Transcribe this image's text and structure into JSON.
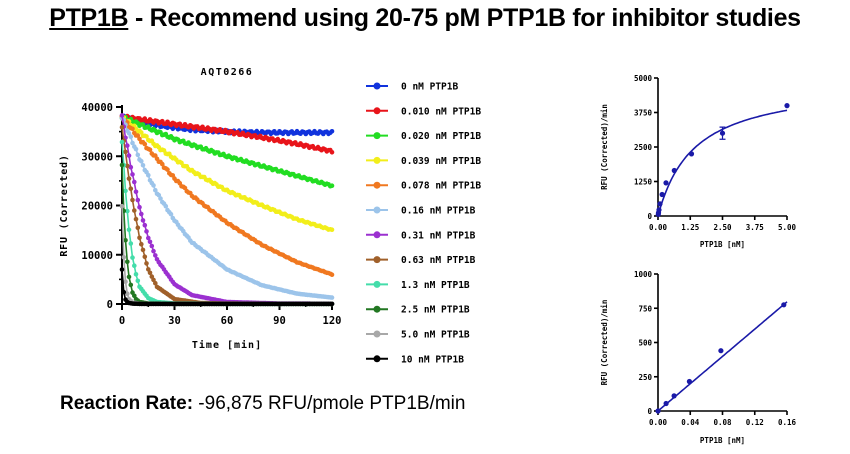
{
  "headline": {
    "prefix": "PTP1B",
    "rest": " - Recommend using 20-75 pM PTP1B for inhibitor studies"
  },
  "rate": {
    "label": "Reaction Rate:",
    "value": " -96,875 RFU/pmole PTP1B/min"
  },
  "chart_data": [
    {
      "type": "line",
      "title": "AQT0266",
      "xlabel": "Time [min]",
      "ylabel": "RFU (Corrected)",
      "xlim": [
        0,
        120
      ],
      "ylim": [
        0,
        40000
      ],
      "xticks": [
        "0",
        "30",
        "60",
        "90",
        "120"
      ],
      "yticks": [
        "0",
        "10000",
        "20000",
        "30000",
        "40000"
      ],
      "legend_placement": "right",
      "series": [
        {
          "name": "0 nM PTP1B",
          "color": "#1133dd",
          "x": [
            0,
            10,
            20,
            30,
            40,
            60,
            80,
            100,
            120
          ],
          "y": [
            38000,
            37000,
            36300,
            35800,
            35400,
            35000,
            34800,
            34800,
            34800
          ]
        },
        {
          "name": "0.010 nM PTP1B",
          "color": "#e8141a",
          "x": [
            0,
            10,
            20,
            30,
            40,
            60,
            80,
            100,
            120
          ],
          "y": [
            38000,
            37500,
            37000,
            36500,
            36000,
            35000,
            33800,
            32500,
            31000
          ]
        },
        {
          "name": "0.020 nM PTP1B",
          "color": "#22dd22",
          "x": [
            0,
            10,
            20,
            30,
            40,
            60,
            80,
            100,
            120
          ],
          "y": [
            38000,
            36500,
            35000,
            33500,
            32300,
            30000,
            28000,
            26000,
            24000
          ]
        },
        {
          "name": "0.039 nM PTP1B",
          "color": "#f2ee1a",
          "x": [
            0,
            10,
            20,
            30,
            40,
            60,
            80,
            100,
            120
          ],
          "y": [
            38000,
            35000,
            32000,
            29500,
            27000,
            23000,
            20000,
            17200,
            15000
          ]
        },
        {
          "name": "0.078 nM PTP1B",
          "color": "#f07820",
          "x": [
            0,
            10,
            20,
            30,
            40,
            60,
            80,
            100,
            120
          ],
          "y": [
            38000,
            33500,
            29500,
            25500,
            22000,
            16500,
            12000,
            8500,
            6000
          ]
        },
        {
          "name": "0.16 nM PTP1B",
          "color": "#9cc4ea",
          "x": [
            0,
            10,
            20,
            30,
            40,
            60,
            80,
            100,
            120
          ],
          "y": [
            38000,
            29500,
            22500,
            17000,
            12500,
            7000,
            3800,
            2100,
            1300
          ]
        },
        {
          "name": "0.31 nM PTP1B",
          "color": "#9b30d0",
          "x": [
            0,
            5,
            10,
            15,
            20,
            30,
            40,
            60,
            90,
            120
          ],
          "y": [
            38000,
            28000,
            19500,
            13500,
            9000,
            4000,
            1800,
            400,
            100,
            50
          ]
        },
        {
          "name": "0.63 nM PTP1B",
          "color": "#a0602a",
          "x": [
            0,
            3,
            6,
            10,
            15,
            20,
            30,
            45,
            60,
            90,
            120
          ],
          "y": [
            36000,
            28000,
            21000,
            13500,
            7000,
            3500,
            1000,
            200,
            80,
            40,
            30
          ]
        },
        {
          "name": "1.3 nM PTP1B",
          "color": "#44ddaa",
          "x": [
            0,
            2,
            4,
            6,
            8,
            10,
            15,
            20,
            30,
            60,
            120
          ],
          "y": [
            33000,
            23000,
            15000,
            9500,
            6000,
            3500,
            1200,
            400,
            100,
            30,
            20
          ]
        },
        {
          "name": "2.5 nM PTP1B",
          "color": "#227722",
          "x": [
            0,
            1,
            2,
            3,
            4,
            6,
            8,
            10,
            15,
            30,
            120
          ],
          "y": [
            28000,
            19000,
            13000,
            8500,
            5500,
            2300,
            1000,
            400,
            100,
            30,
            20
          ]
        },
        {
          "name": "5.0 nM PTP1B",
          "color": "#a8a8a8",
          "x": [
            0,
            0.5,
            1,
            1.5,
            2,
            3,
            4,
            6,
            10,
            30,
            120
          ],
          "y": [
            20000,
            14000,
            9500,
            6500,
            4500,
            2100,
            1000,
            300,
            50,
            20,
            20
          ]
        },
        {
          "name": "10 nM PTP1B",
          "color": "#000000",
          "x": [
            0,
            0.5,
            1,
            1.5,
            2,
            3,
            4,
            6,
            10,
            30,
            120
          ],
          "y": [
            7000,
            4200,
            2400,
            1400,
            900,
            400,
            200,
            80,
            30,
            20,
            20
          ]
        }
      ]
    },
    {
      "type": "scatter",
      "xlabel": "PTP1B [nM]",
      "ylabel": "RFU (Corrected)/min",
      "xlim": [
        0,
        5
      ],
      "ylim": [
        0,
        5000
      ],
      "xticks": [
        "0.00",
        "1.25",
        "2.50",
        "3.75",
        "5.00"
      ],
      "yticks": [
        "0",
        "1250",
        "2500",
        "3750",
        "5000"
      ],
      "points": [
        {
          "x": 0.01,
          "y": 60
        },
        {
          "x": 0.02,
          "y": 120
        },
        {
          "x": 0.039,
          "y": 220
        },
        {
          "x": 0.078,
          "y": 440
        },
        {
          "x": 0.16,
          "y": 780
        },
        {
          "x": 0.31,
          "y": 1200
        },
        {
          "x": 0.63,
          "y": 1650
        },
        {
          "x": 1.3,
          "y": 2250
        },
        {
          "x": 2.5,
          "y": 3000,
          "err": 220
        },
        {
          "x": 5.0,
          "y": 4000
        }
      ],
      "fit": {
        "type": "michaelis-menten",
        "vmax": 4900,
        "km": 1.4
      }
    },
    {
      "type": "scatter",
      "xlabel": "PTP1B [nM]",
      "ylabel": "RFU (Corrected)/min",
      "xlim": [
        0,
        0.16
      ],
      "ylim": [
        0,
        1000
      ],
      "xticks": [
        "0.00",
        "0.04",
        "0.08",
        "0.12",
        "0.16"
      ],
      "yticks": [
        "0",
        "250",
        "500",
        "750",
        "1000"
      ],
      "points": [
        {
          "x": 0.0,
          "y": 0
        },
        {
          "x": 0.01,
          "y": 55
        },
        {
          "x": 0.02,
          "y": 110
        },
        {
          "x": 0.039,
          "y": 215
        },
        {
          "x": 0.078,
          "y": 440
        },
        {
          "x": 0.156,
          "y": 775
        }
      ],
      "fit": {
        "type": "linear",
        "slope": 4980,
        "intercept": 0
      }
    }
  ]
}
